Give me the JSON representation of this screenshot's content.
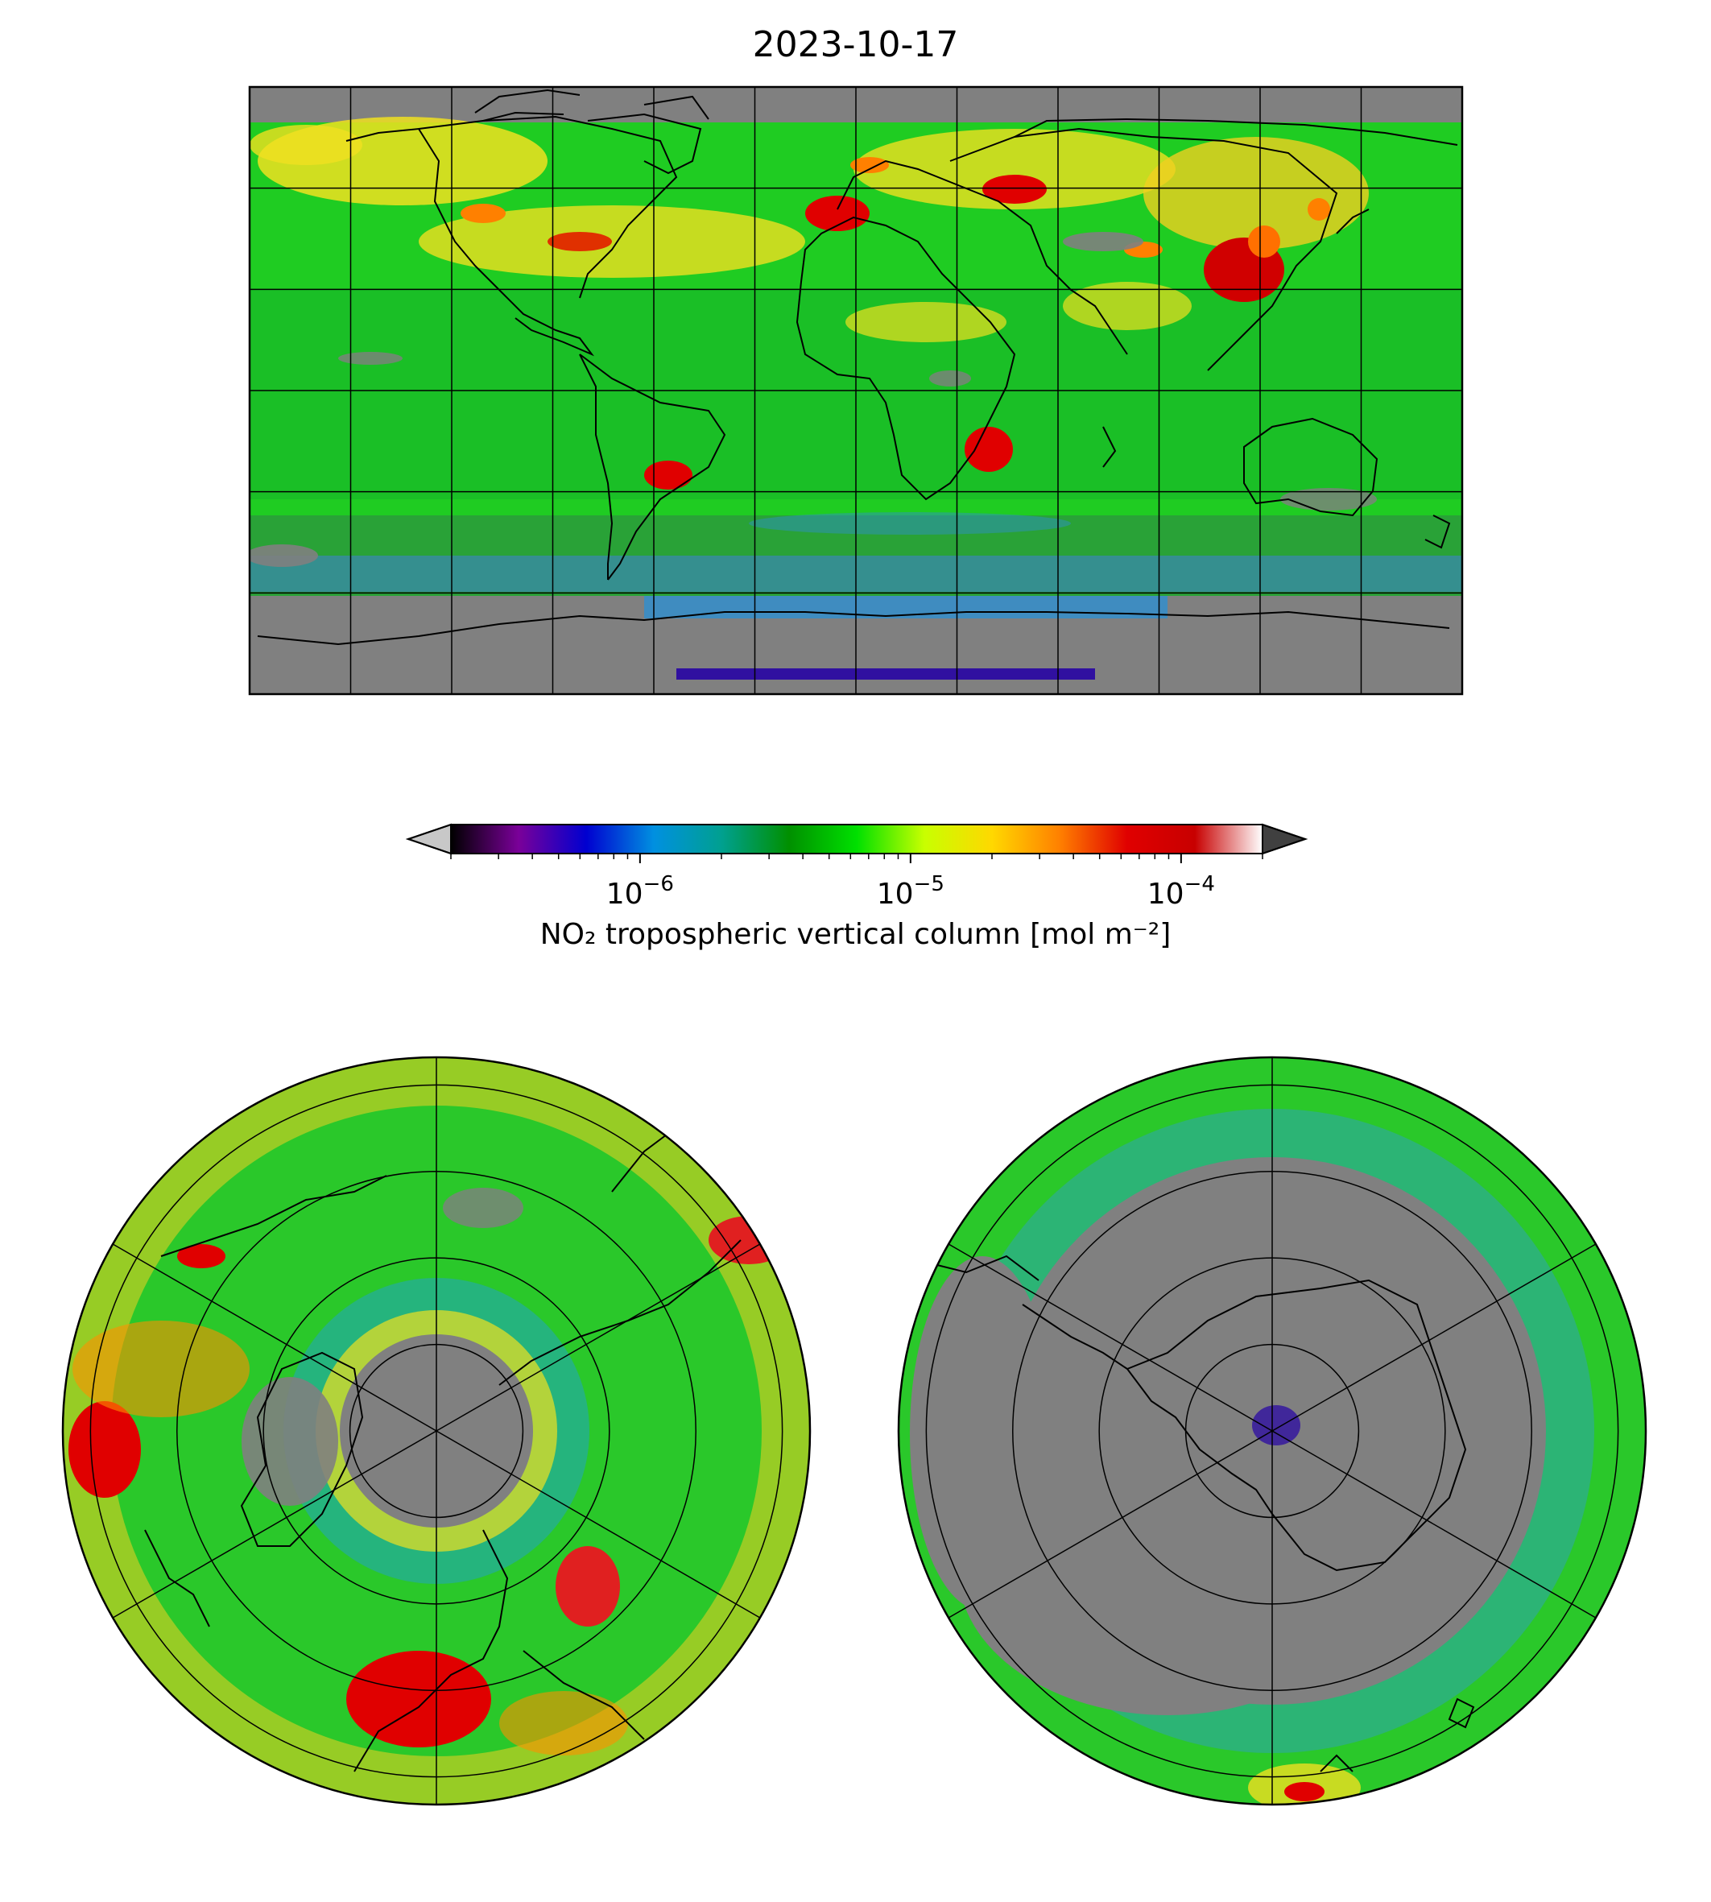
{
  "figure": {
    "title": "2023-10-17"
  },
  "colorbar": {
    "label": "NO₂ tropospheric vertical column [mol m⁻²]",
    "scale": "log",
    "range": [
      2e-07,
      0.0002
    ],
    "extend": "both",
    "ticks": [
      {
        "value": 1e-06,
        "base": "10",
        "exp": "−6"
      },
      {
        "value": 1e-05,
        "base": "10",
        "exp": "−5"
      },
      {
        "value": 0.0001,
        "base": "10",
        "exp": "−4"
      }
    ],
    "stops": [
      "#000000",
      "#7a0099",
      "#0000d0",
      "#0090e0",
      "#00a090",
      "#009000",
      "#00e000",
      "#c8ff00",
      "#ffd800",
      "#ff8000",
      "#e00000",
      "#c80000",
      "#ffffff"
    ],
    "under_color": "#c8c8c8",
    "over_color": "#404040"
  },
  "colors": {
    "missing_data": "#808080",
    "coastline": "#000000",
    "gridline": "#000000"
  },
  "panels": {
    "global": {
      "projection": "plate-carree",
      "meridian_step_deg": 30,
      "parallel_step_deg": 30
    },
    "north_polar": {
      "projection": "north-polar-stereographic",
      "meridians_deg": [
        0,
        60,
        120,
        180,
        240,
        300
      ],
      "rings": 4
    },
    "south_polar": {
      "projection": "south-polar-stereographic",
      "meridians_deg": [
        0,
        60,
        120,
        180,
        240,
        300
      ],
      "rings": 4
    }
  }
}
